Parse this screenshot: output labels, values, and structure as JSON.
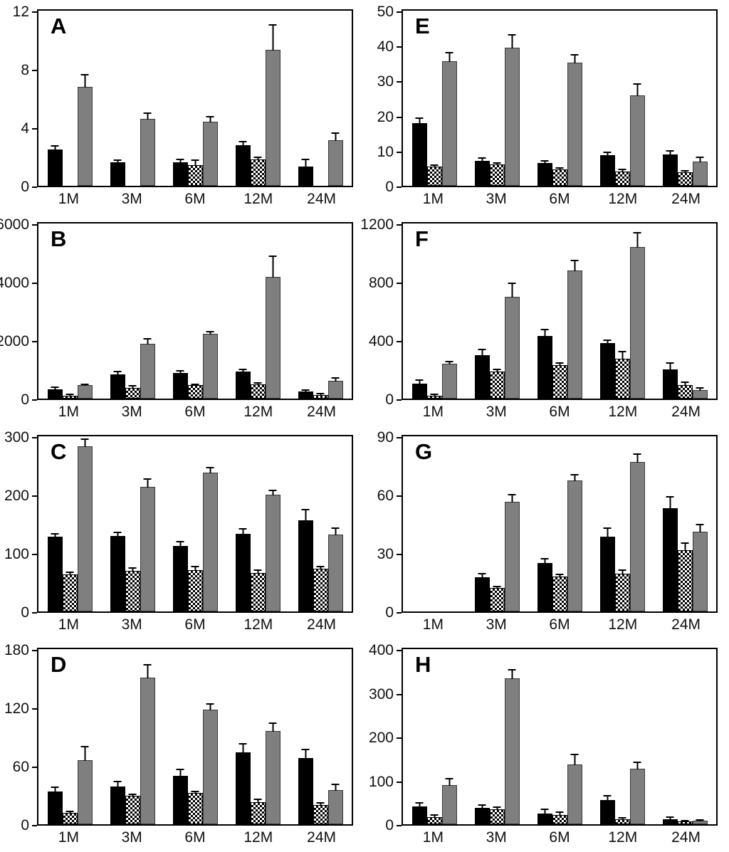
{
  "figure": {
    "description": "Eight-panel grouped bar chart figure, panels A-H, three bar series (black solid, black-white checkered, gray) with upward error bars, grouped by age categories",
    "grid_order": [
      "A",
      "E",
      "B",
      "F",
      "C",
      "G",
      "D",
      "H"
    ],
    "colors": {
      "black_series": "#000000",
      "checkered_fg": "#000000",
      "checkered_bg": "#ffffff",
      "gray_series": "#7f7f7f",
      "axis": "#000000",
      "background": "#ffffff"
    }
  },
  "chart_data": [
    {
      "panel": "A",
      "type": "bar",
      "legend": "none",
      "grid": false,
      "categories": [
        "1M",
        "3M",
        "6M",
        "12M",
        "24M"
      ],
      "ylim": [
        0,
        12
      ],
      "yticks": [
        0,
        4,
        8,
        12
      ],
      "series": [
        {
          "name": "black",
          "values": [
            2.5,
            1.6,
            1.6,
            2.8,
            1.3
          ],
          "errors": [
            0.2,
            0.1,
            0.15,
            0.2,
            0.45
          ]
        },
        {
          "name": "checkered",
          "values": [
            0,
            0,
            1.4,
            1.8,
            0
          ],
          "errors": [
            0,
            0,
            0.35,
            0.15,
            0
          ]
        },
        {
          "name": "gray",
          "values": [
            6.8,
            4.6,
            4.4,
            9.3,
            3.1
          ],
          "errors": [
            0.8,
            0.4,
            0.35,
            1.7,
            0.5
          ]
        }
      ]
    },
    {
      "panel": "E",
      "type": "bar",
      "legend": "none",
      "grid": false,
      "categories": [
        "1M",
        "3M",
        "6M",
        "12M",
        "24M"
      ],
      "ylim": [
        0,
        50
      ],
      "yticks": [
        0,
        10,
        20,
        30,
        40,
        50
      ],
      "series": [
        {
          "name": "black",
          "values": [
            17.9,
            7.2,
            6.6,
            8.7,
            8.9
          ],
          "errors": [
            1.2,
            0.6,
            0.4,
            0.7,
            0.8
          ]
        },
        {
          "name": "checkered",
          "values": [
            5.5,
            6.2,
            4.7,
            4.0,
            3.8
          ],
          "errors": [
            0.4,
            0.4,
            0.4,
            0.6,
            0.5
          ]
        },
        {
          "name": "gray",
          "values": [
            35.6,
            39.4,
            35.1,
            25.8,
            6.9
          ],
          "errors": [
            2.4,
            3.8,
            2.3,
            3.3,
            1.2
          ]
        }
      ]
    },
    {
      "panel": "B",
      "type": "bar",
      "legend": "none",
      "grid": false,
      "categories": [
        "1M",
        "3M",
        "6M",
        "12M",
        "24M"
      ],
      "ylim": [
        0,
        6000
      ],
      "yticks": [
        0,
        2000,
        4000,
        6000
      ],
      "series": [
        {
          "name": "black",
          "values": [
            330,
            830,
            870,
            920,
            250
          ],
          "errors": [
            50,
            80,
            50,
            60,
            30
          ]
        },
        {
          "name": "checkered",
          "values": [
            90,
            370,
            460,
            490,
            130
          ],
          "errors": [
            50,
            60,
            30,
            40,
            40
          ]
        },
        {
          "name": "gray",
          "values": [
            460,
            1870,
            2210,
            4170,
            600
          ],
          "errors": [
            40,
            170,
            90,
            720,
            110
          ]
        }
      ]
    },
    {
      "panel": "F",
      "type": "bar",
      "legend": "none",
      "grid": false,
      "categories": [
        "1M",
        "3M",
        "6M",
        "12M",
        "24M"
      ],
      "ylim": [
        0,
        1200
      ],
      "yticks": [
        0,
        400,
        800,
        1200
      ],
      "series": [
        {
          "name": "black",
          "values": [
            105,
            300,
            430,
            380,
            200
          ],
          "errors": [
            15,
            30,
            40,
            15,
            40
          ]
        },
        {
          "name": "checkered",
          "values": [
            20,
            185,
            230,
            275,
            95
          ],
          "errors": [
            10,
            15,
            15,
            45,
            15
          ]
        },
        {
          "name": "gray",
          "values": [
            240,
            700,
            880,
            1040,
            60
          ],
          "errors": [
            15,
            90,
            65,
            95,
            15
          ]
        }
      ]
    },
    {
      "panel": "C",
      "type": "bar",
      "legend": "none",
      "grid": false,
      "categories": [
        "1M",
        "3M",
        "6M",
        "12M",
        "24M"
      ],
      "ylim": [
        0,
        300
      ],
      "yticks": [
        0,
        100,
        200,
        300
      ],
      "series": [
        {
          "name": "black",
          "values": [
            128,
            129,
            112,
            133,
            156
          ],
          "errors": [
            4,
            5,
            7,
            7,
            17
          ]
        },
        {
          "name": "checkered",
          "values": [
            64,
            70,
            71,
            66,
            73
          ],
          "errors": [
            3,
            4,
            6,
            5,
            4
          ]
        },
        {
          "name": "gray",
          "values": [
            283,
            213,
            238,
            200,
            132
          ],
          "errors": [
            12,
            14,
            8,
            7,
            11
          ]
        }
      ]
    },
    {
      "panel": "G",
      "type": "bar",
      "legend": "none",
      "grid": false,
      "categories": [
        "1M",
        "3M",
        "6M",
        "12M",
        "24M"
      ],
      "ylim": [
        0,
        90
      ],
      "yticks": [
        0,
        30,
        60,
        90
      ],
      "series": [
        {
          "name": "black",
          "values": [
            0,
            17.5,
            25,
            38.5,
            53
          ],
          "errors": [
            0,
            1.5,
            1.7,
            4,
            5.5
          ]
        },
        {
          "name": "checkered",
          "values": [
            0,
            12,
            18,
            19.5,
            31.5
          ],
          "errors": [
            0,
            1,
            1.2,
            1.6,
            3.5
          ]
        },
        {
          "name": "gray",
          "values": [
            0,
            56.5,
            67.5,
            77,
            41
          ],
          "errors": [
            0,
            3.6,
            2.8,
            4,
            3.5
          ]
        }
      ]
    },
    {
      "panel": "D",
      "type": "bar",
      "legend": "none",
      "grid": false,
      "categories": [
        "1M",
        "3M",
        "6M",
        "12M",
        "24M"
      ],
      "ylim": [
        0,
        180
      ],
      "yticks": [
        0,
        60,
        120,
        180
      ],
      "series": [
        {
          "name": "black",
          "values": [
            34,
            39,
            50,
            74,
            68
          ],
          "errors": [
            3,
            4,
            6,
            8,
            8
          ]
        },
        {
          "name": "checkered",
          "values": [
            12,
            29,
            32,
            23,
            20
          ],
          "errors": [
            1.5,
            2,
            2,
            3,
            2
          ]
        },
        {
          "name": "gray",
          "values": [
            66,
            151,
            118,
            96,
            35
          ],
          "errors": [
            14,
            13,
            6,
            8,
            6
          ]
        }
      ]
    },
    {
      "panel": "H",
      "type": "bar",
      "legend": "none",
      "grid": false,
      "categories": [
        "1M",
        "3M",
        "6M",
        "12M",
        "24M"
      ],
      "ylim": [
        0,
        400
      ],
      "yticks": [
        0,
        100,
        200,
        300,
        400
      ],
      "series": [
        {
          "name": "black",
          "values": [
            41,
            37,
            25,
            55,
            12
          ],
          "errors": [
            6,
            5,
            7,
            9,
            3
          ]
        },
        {
          "name": "checkered",
          "values": [
            16,
            35,
            21,
            11,
            6
          ],
          "errors": [
            5,
            4,
            6,
            4,
            2
          ]
        },
        {
          "name": "gray",
          "values": [
            90,
            333,
            137,
            127,
            8
          ],
          "errors": [
            14,
            20,
            22,
            14,
            2
          ]
        }
      ]
    }
  ]
}
